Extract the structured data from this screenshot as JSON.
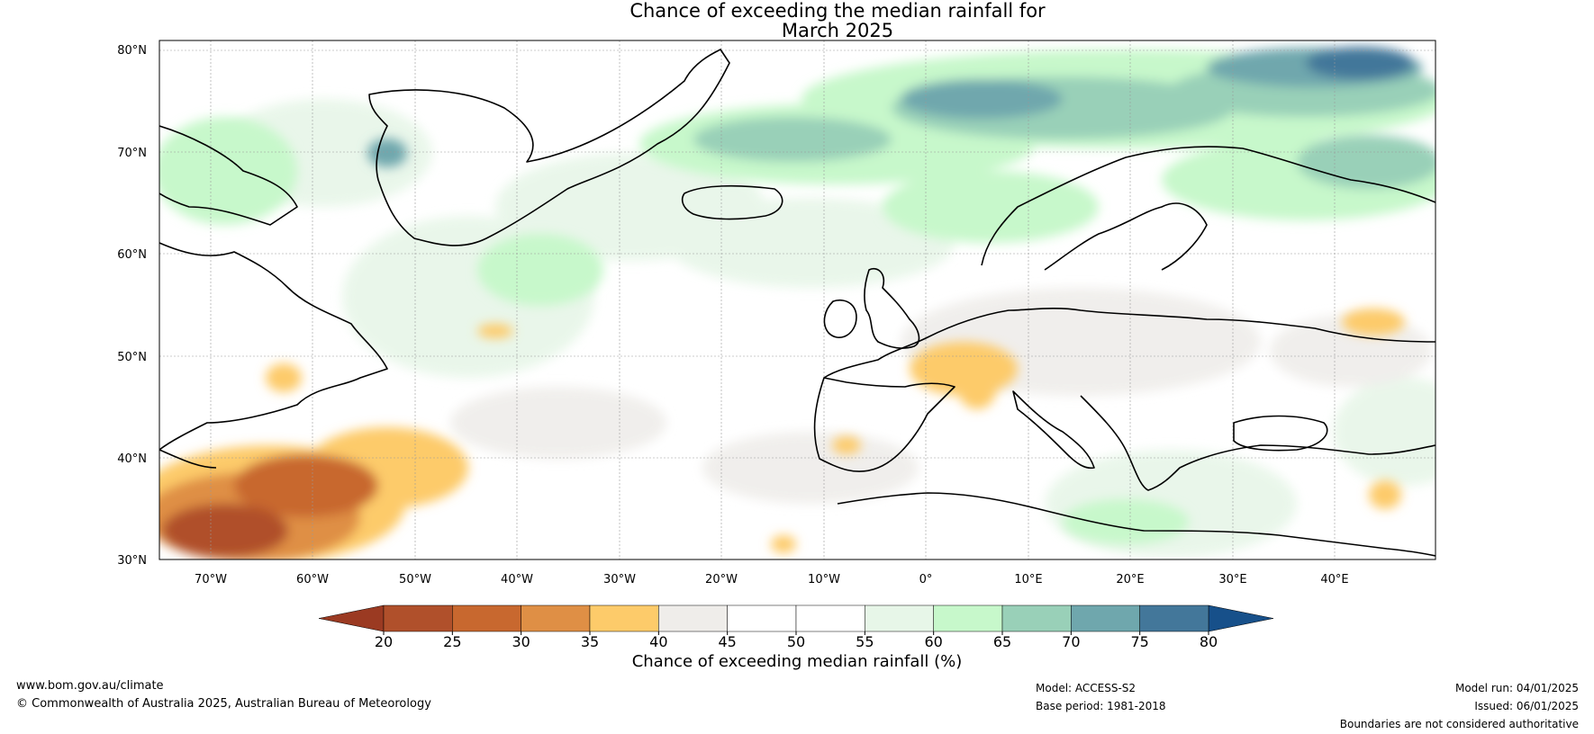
{
  "title": {
    "line1": "Chance of exceeding the median rainfall for",
    "line2": "March 2025"
  },
  "map": {
    "lat_labels": [
      "80°N",
      "70°N",
      "60°N",
      "50°N",
      "40°N",
      "30°N"
    ],
    "lon_labels": [
      "70°W",
      "60°W",
      "50°W",
      "40°W",
      "30°W",
      "20°W",
      "10°W",
      "0°",
      "10°E",
      "20°E",
      "30°E",
      "40°E"
    ],
    "lat_range": [
      30,
      81
    ],
    "lon_range": [
      -75,
      50
    ],
    "regions": [
      {
        "name": "Norwegian Sea / Barents",
        "category": "60-65"
      },
      {
        "name": "Greenland Sea",
        "category": "65-70"
      },
      {
        "name": "Barents Sea north",
        "category": "75-80"
      },
      {
        "name": "Western Atlantic off US coast",
        "category": "20-25"
      },
      {
        "name": "France / Benelux",
        "category": "35-40"
      },
      {
        "name": "Western Russia",
        "category": "35-40"
      }
    ]
  },
  "colorbar": {
    "ticks": [
      "20",
      "25",
      "30",
      "35",
      "40",
      "45",
      "50",
      "55",
      "60",
      "65",
      "70",
      "75",
      "80"
    ],
    "colors": [
      "#b0502b",
      "#c8682f",
      "#df8f45",
      "#fdcb6a",
      "#efedea",
      "#ffffff",
      "#ffffff",
      "#e7f6e8",
      "#c7f8cb",
      "#99d0b8",
      "#6fa7ad",
      "#43779a"
    ],
    "under_color": "#9b3a22",
    "over_color": "#17508a",
    "label": "Chance of exceeding median rainfall (%)"
  },
  "footer": {
    "website": "www.bom.gov.au/climate",
    "copyright": "© Commonwealth of Australia 2025, Australian Bureau of Meteorology",
    "model": "Model: ACCESS-S2",
    "base_period": "Base period: 1981-2018",
    "model_run": "Model run: 04/01/2025",
    "issued": "Issued: 06/01/2025",
    "disclaimer": "Boundaries are not considered authoritative"
  }
}
